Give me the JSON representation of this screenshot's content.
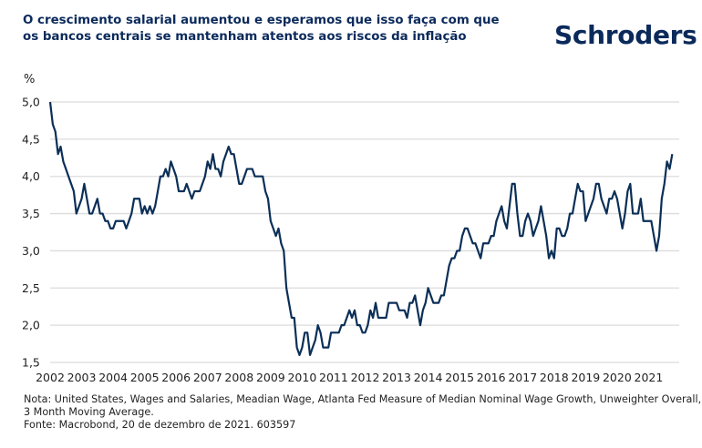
{
  "header": {
    "title_lines": [
      "O crescimento salarial aumentou e esperamos que isso faça com que",
      "os bancos centrais se mantenham atentos aos riscos da inflação"
    ],
    "logo_text": "Schroders",
    "brand_color": "#0b2a5b"
  },
  "chart_data": {
    "type": "line",
    "title": "O crescimento salarial aumentou e esperamos que isso faça com que os bancos centrais se mantenham atentos aos riscos da inflação",
    "ylabel": "%",
    "xlabel": "",
    "ylim": [
      1.5,
      5.0
    ],
    "xlim": [
      2002.0,
      2021.95
    ],
    "yticks": [
      1.5,
      2.0,
      2.5,
      3.0,
      3.5,
      4.0,
      4.5,
      5.0
    ],
    "ytick_labels": [
      "1,5",
      "2,0",
      "2,5",
      "3,0",
      "3,5",
      "4,0",
      "4,5",
      "5,0"
    ],
    "xticks": [
      2002,
      2003,
      2004,
      2005,
      2006,
      2007,
      2008,
      2009,
      2010,
      2011,
      2012,
      2013,
      2014,
      2015,
      2016,
      2017,
      2018,
      2019,
      2020,
      2021
    ],
    "xtick_labels": [
      "2002",
      "2003",
      "2004",
      "2005",
      "2006",
      "2007",
      "2008",
      "2009",
      "2010",
      "2011",
      "2012",
      "2013",
      "2014",
      "2015",
      "2016",
      "2017",
      "2018",
      "2019",
      "2020",
      "2021"
    ],
    "grid": true,
    "legend": "none",
    "line_color": "#0b2f57",
    "series": [
      {
        "name": "Atlanta Fed Median Nominal Wage Growth, 3M MA",
        "start": 2002.0,
        "step_months": 1,
        "values": [
          5.0,
          4.7,
          4.6,
          4.3,
          4.4,
          4.2,
          4.1,
          4.0,
          3.9,
          3.8,
          3.5,
          3.6,
          3.7,
          3.9,
          3.7,
          3.5,
          3.5,
          3.6,
          3.7,
          3.5,
          3.5,
          3.4,
          3.4,
          3.3,
          3.3,
          3.4,
          3.4,
          3.4,
          3.4,
          3.3,
          3.4,
          3.5,
          3.7,
          3.7,
          3.7,
          3.5,
          3.6,
          3.5,
          3.6,
          3.5,
          3.6,
          3.8,
          4.0,
          4.0,
          4.1,
          4.0,
          4.2,
          4.1,
          4.0,
          3.8,
          3.8,
          3.8,
          3.9,
          3.8,
          3.7,
          3.8,
          3.8,
          3.8,
          3.9,
          4.0,
          4.2,
          4.1,
          4.3,
          4.1,
          4.1,
          4.0,
          4.2,
          4.3,
          4.4,
          4.3,
          4.3,
          4.1,
          3.9,
          3.9,
          4.0,
          4.1,
          4.1,
          4.1,
          4.0,
          4.0,
          4.0,
          4.0,
          3.8,
          3.7,
          3.4,
          3.3,
          3.2,
          3.3,
          3.1,
          3.0,
          2.5,
          2.3,
          2.1,
          2.1,
          1.7,
          1.6,
          1.7,
          1.9,
          1.9,
          1.6,
          1.7,
          1.8,
          2.0,
          1.9,
          1.7,
          1.7,
          1.7,
          1.9,
          1.9,
          1.9,
          1.9,
          2.0,
          2.0,
          2.1,
          2.2,
          2.1,
          2.2,
          2.0,
          2.0,
          1.9,
          1.9,
          2.0,
          2.2,
          2.1,
          2.3,
          2.1,
          2.1,
          2.1,
          2.1,
          2.3,
          2.3,
          2.3,
          2.3,
          2.2,
          2.2,
          2.2,
          2.1,
          2.3,
          2.3,
          2.4,
          2.2,
          2.0,
          2.2,
          2.3,
          2.5,
          2.4,
          2.3,
          2.3,
          2.3,
          2.4,
          2.4,
          2.6,
          2.8,
          2.9,
          2.9,
          3.0,
          3.0,
          3.2,
          3.3,
          3.3,
          3.2,
          3.1,
          3.1,
          3.0,
          2.9,
          3.1,
          3.1,
          3.1,
          3.2,
          3.2,
          3.4,
          3.5,
          3.6,
          3.4,
          3.3,
          3.6,
          3.9,
          3.9,
          3.5,
          3.2,
          3.2,
          3.4,
          3.5,
          3.4,
          3.2,
          3.3,
          3.4,
          3.6,
          3.4,
          3.2,
          2.9,
          3.0,
          2.9,
          3.3,
          3.3,
          3.2,
          3.2,
          3.3,
          3.5,
          3.5,
          3.7,
          3.9,
          3.8,
          3.8,
          3.4,
          3.5,
          3.6,
          3.7,
          3.9,
          3.9,
          3.7,
          3.6,
          3.5,
          3.7,
          3.7,
          3.8,
          3.7,
          3.5,
          3.3,
          3.5,
          3.8,
          3.9,
          3.5,
          3.5,
          3.5,
          3.7,
          3.4,
          3.4,
          3.4,
          3.4,
          3.2,
          3.0,
          3.2,
          3.7,
          3.9,
          4.2,
          4.1,
          4.3
        ]
      }
    ]
  },
  "notes": {
    "lines": [
      "Nota: United States, Wages and Salaries, Meadian Wage, Atlanta Fed Measure of Median Nominal Wage Growth, Unweighter Overall,",
      "3 Month Moving Average.",
      "Fonte: Macrobond, 20 de dezembro de 2021. 603597"
    ]
  }
}
